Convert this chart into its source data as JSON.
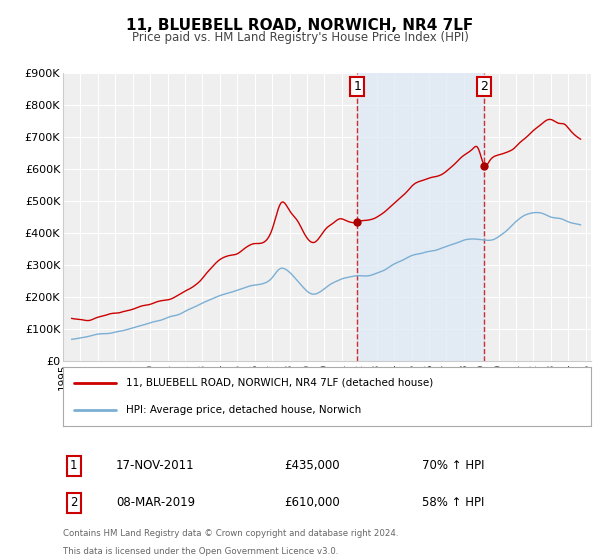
{
  "title": "11, BLUEBELL ROAD, NORWICH, NR4 7LF",
  "subtitle": "Price paid vs. HM Land Registry's House Price Index (HPI)",
  "ylim": [
    0,
    900000
  ],
  "yticks": [
    0,
    100000,
    200000,
    300000,
    400000,
    500000,
    600000,
    700000,
    800000,
    900000
  ],
  "ytick_labels": [
    "£0",
    "£100K",
    "£200K",
    "£300K",
    "£400K",
    "£500K",
    "£600K",
    "£700K",
    "£800K",
    "£900K"
  ],
  "xlim_start": 1995.0,
  "xlim_end": 2025.3,
  "background_color": "#ffffff",
  "plot_bg_color": "#efefef",
  "grid_color": "#ffffff",
  "red_line_color": "#cc0000",
  "blue_line_color": "#7bafd4",
  "marker_color": "#aa0000",
  "shaded_region_color": "#dde8f5",
  "shaded_alpha": 0.7,
  "event1_x": 2011.88,
  "event1_y": 435000,
  "event2_x": 2019.18,
  "event2_y": 610000,
  "legend_label_red": "11, BLUEBELL ROAD, NORWICH, NR4 7LF (detached house)",
  "legend_label_blue": "HPI: Average price, detached house, Norwich",
  "annotation1_label": "1",
  "annotation2_label": "2",
  "info1_num": "1",
  "info1_date": "17-NOV-2011",
  "info1_price": "£435,000",
  "info1_hpi": "70% ↑ HPI",
  "info2_num": "2",
  "info2_date": "08-MAR-2019",
  "info2_price": "£610,000",
  "info2_hpi": "58% ↑ HPI",
  "footer1": "Contains HM Land Registry data © Crown copyright and database right 2024.",
  "footer2": "This data is licensed under the Open Government Licence v3.0."
}
